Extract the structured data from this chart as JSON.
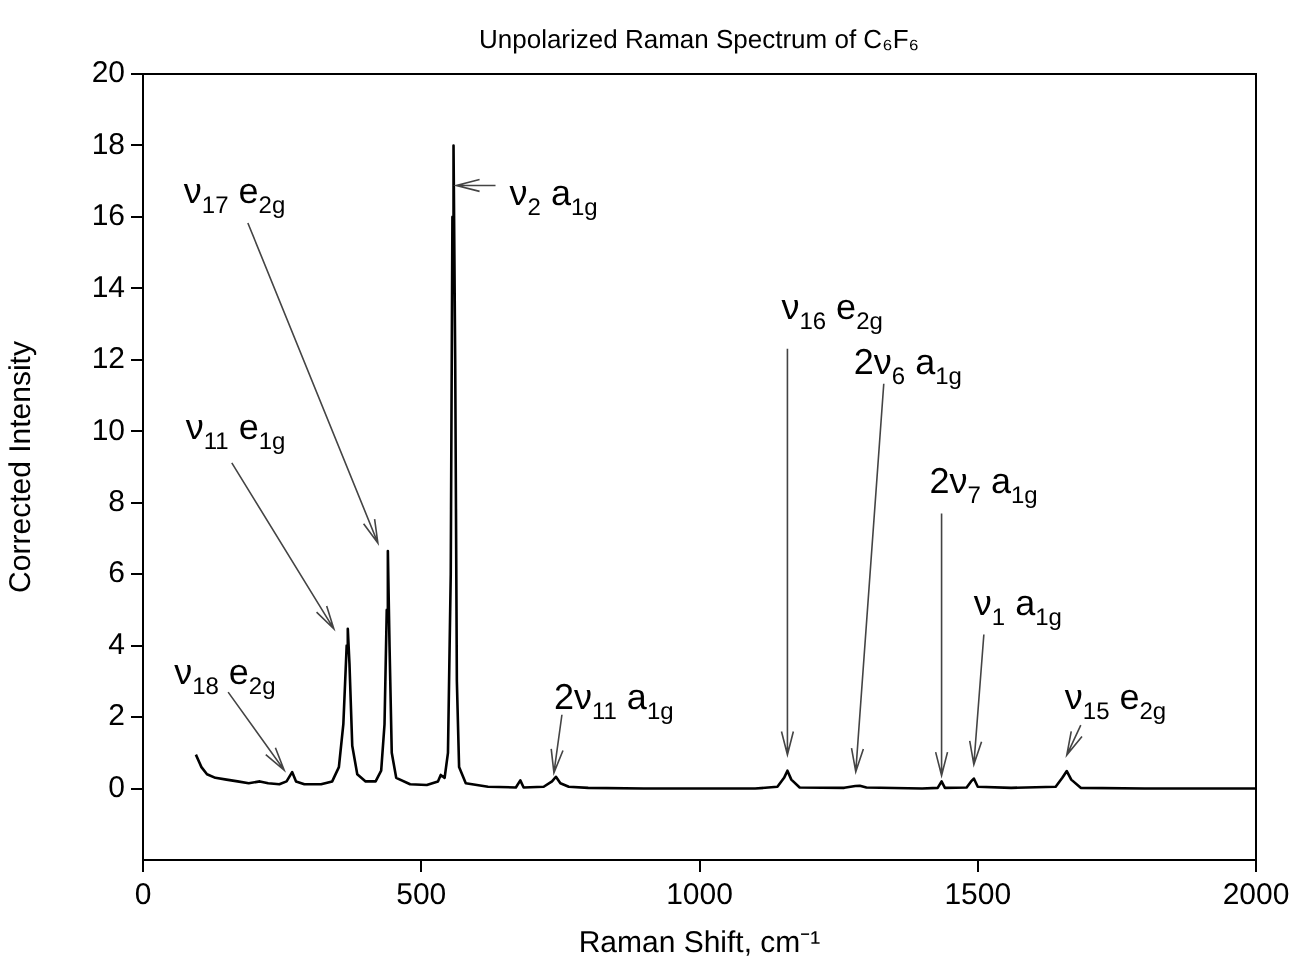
{
  "chart_data": {
    "type": "line",
    "title": "Unpolarized Raman Spectrum of C₆F₆",
    "xlabel": "Raman Shift, cm⁻¹",
    "ylabel": "Corrected Intensity",
    "xlim": [
      0,
      2000
    ],
    "xticks": [
      0,
      500,
      1000,
      1500,
      2000
    ],
    "ylim": [
      -2,
      20
    ],
    "yticks": [
      0,
      2,
      4,
      6,
      8,
      10,
      12,
      14,
      16,
      18,
      20
    ],
    "grid": false,
    "legend": false,
    "marker": "none",
    "line_style": "solid",
    "series": [
      {
        "color": "#000000",
        "x": [
          95,
          105,
          115,
          130,
          150,
          170,
          190,
          210,
          225,
          245,
          258,
          268,
          275,
          290,
          320,
          340,
          352,
          360,
          366,
          368,
          371,
          376,
          385,
          400,
          418,
          428,
          434,
          438,
          440,
          443,
          447,
          455,
          480,
          510,
          530,
          535,
          542,
          548,
          553,
          556,
          558,
          561,
          564,
          568,
          580,
          620,
          670,
          678,
          684,
          720,
          735,
          742,
          750,
          765,
          800,
          900,
          1100,
          1140,
          1152,
          1158,
          1165,
          1180,
          1260,
          1280,
          1288,
          1300,
          1400,
          1428,
          1435,
          1441,
          1480,
          1488,
          1493,
          1500,
          1560,
          1640,
          1652,
          1660,
          1668,
          1685,
          1800,
          2000
        ],
        "values": [
          0.95,
          0.6,
          0.4,
          0.3,
          0.25,
          0.2,
          0.15,
          0.2,
          0.15,
          0.12,
          0.2,
          0.46,
          0.2,
          0.12,
          0.12,
          0.2,
          0.6,
          1.8,
          4.0,
          4.47,
          3.5,
          1.2,
          0.4,
          0.2,
          0.2,
          0.5,
          1.8,
          5.0,
          6.65,
          4.0,
          1.0,
          0.3,
          0.12,
          0.1,
          0.2,
          0.38,
          0.3,
          1.0,
          6.0,
          16.0,
          18,
          12,
          3.0,
          0.6,
          0.15,
          0.05,
          0.03,
          0.23,
          0.03,
          0.05,
          0.2,
          0.33,
          0.15,
          0.05,
          0.02,
          0,
          0,
          0.05,
          0.3,
          0.5,
          0.25,
          0.03,
          0.02,
          0.07,
          0.08,
          0.03,
          0,
          0.02,
          0.2,
          0.02,
          0.03,
          0.2,
          0.28,
          0.05,
          0.02,
          0.05,
          0.3,
          0.49,
          0.25,
          0.02,
          0,
          0
        ]
      }
    ],
    "annotations": [
      {
        "text": "ν$_{17}$ e$_{2g}$",
        "x": 440,
        "y": 6.65
      },
      {
        "text": "ν$_{2}$ a$_{1g}$",
        "x": 558,
        "y": 18
      },
      {
        "text": "ν$_{11}$ e$_{1g}$",
        "x": 368,
        "y": 4.47
      },
      {
        "text": "ν$_{18}$ e$_{2g}$",
        "x": 268,
        "y": 0.46
      },
      {
        "text": "2ν$_{11}$ a$_{1g}$",
        "x": 742,
        "y": 0.33
      },
      {
        "text": "ν$_{16}$ e$_{2g}$",
        "x": 1158,
        "y": 0.5
      },
      {
        "text": "2ν$_{6}$ a$_{1g}$",
        "x": 1288,
        "y": 0.08
      },
      {
        "text": "2ν$_{7}$ a$_{1g}$",
        "x": 1435,
        "y": 0.2
      },
      {
        "text": "ν$_{1}$ a$_{1g}$",
        "x": 1493,
        "y": 0.28
      },
      {
        "text": "ν$_{15}$ e$_{2g}$",
        "x": 1660,
        "y": 0.49
      }
    ]
  }
}
